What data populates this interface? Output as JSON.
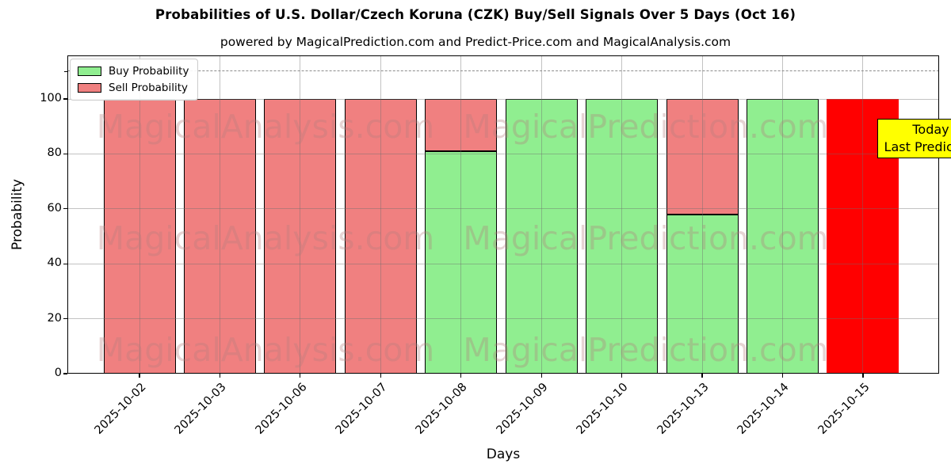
{
  "title": "Probabilities of U.S. Dollar/Czech Koruna (CZK) Buy/Sell Signals Over 5 Days (Oct 16)",
  "subtitle": "powered by MagicalPrediction.com and Predict-Price.com and MagicalAnalysis.com",
  "legend": {
    "items": [
      {
        "id": "buy",
        "label": "Buy Probability",
        "color": "#90EE90"
      },
      {
        "id": "sell",
        "label": "Sell Probability",
        "color": "#F08080"
      }
    ]
  },
  "annotation": {
    "lines": [
      "Today",
      "Last Prediction"
    ]
  },
  "watermarks": {
    "left": "MagicalAnalysis.com",
    "right": "MagicalPrediction.com"
  },
  "axes": {
    "xlabel": "Days",
    "ylabel": "Probability",
    "yticks": [
      0,
      20,
      40,
      60,
      80,
      100
    ],
    "minor_ytick": 110
  },
  "colors": {
    "buy": "#90EE90",
    "sell": "#F08080",
    "today": "#FF0000",
    "annotation_bg": "#FFFF00",
    "bar_edge": "#000000"
  },
  "chart_data": {
    "type": "bar",
    "stacked": true,
    "title": "Probabilities of U.S. Dollar/Czech Koruna (CZK) Buy/Sell Signals Over 5 Days (Oct 16)",
    "xlabel": "Days",
    "ylabel": "Probability",
    "ylim": [
      0,
      116
    ],
    "grid": true,
    "legend_position": "upper left",
    "reference_line": {
      "y": 110,
      "style": "dashed",
      "color": "#8c8c8c"
    },
    "categories": [
      "2025-10-02",
      "2025-10-03",
      "2025-10-06",
      "2025-10-07",
      "2025-10-08",
      "2025-10-09",
      "2025-10-10",
      "2025-10-13",
      "2025-10-14",
      "2025-10-15"
    ],
    "series": [
      {
        "name": "Buy Probability",
        "color": "#90EE90",
        "values": [
          0,
          0,
          0,
          0,
          81,
          100,
          100,
          58,
          100,
          0
        ]
      },
      {
        "name": "Sell Probability",
        "color": "#F08080",
        "values": [
          100,
          100,
          100,
          100,
          19,
          0,
          0,
          42,
          0,
          0
        ]
      }
    ],
    "today_bar": {
      "category": "2025-10-15",
      "value": 100,
      "color": "#FF0000",
      "label": "Today Last Prediction"
    }
  }
}
